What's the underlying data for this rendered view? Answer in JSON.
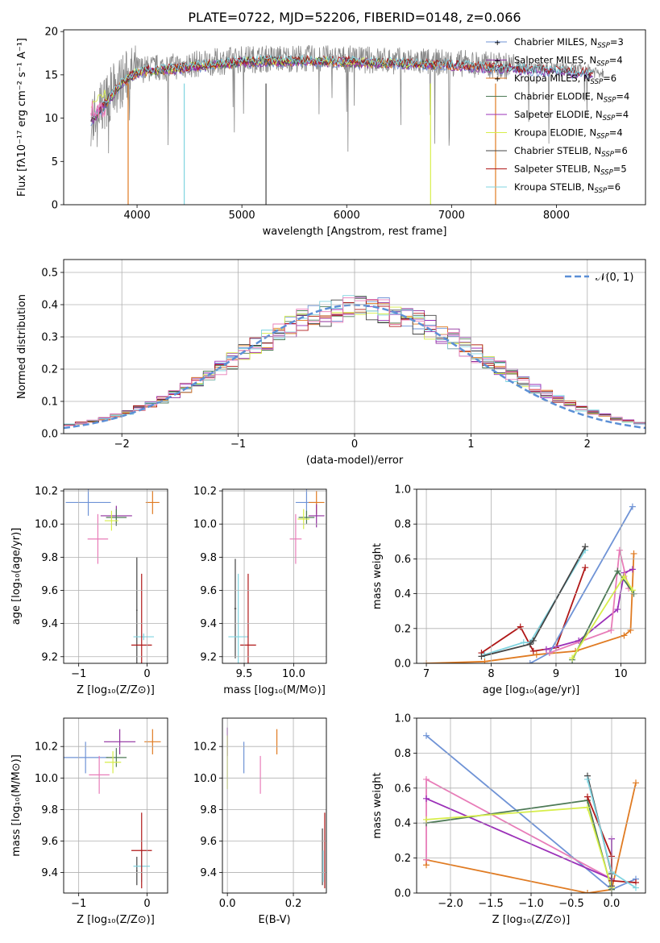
{
  "figure_title": "PLATE=0722, MJD=52206, FIBERID=0148, z=0.066",
  "colors": {
    "Chabrier MILES": "#6f93d6",
    "Salpeter MILES": "#8f2f9e",
    "Kroupa MILES": "#e07b22",
    "Chabrier ELODIE": "#4d7a56",
    "Salpeter ELODIE": "#9b30b8",
    "Kroupa ELODIE": "#d7ee4a",
    "Chabrier STELIB": "#444444",
    "Salpeter STELIB": "#b01818",
    "Kroupa STELIB": "#80d4e0",
    "pink": "#e87cb8",
    "data": "#888888",
    "grid": "#b0b0b0"
  },
  "chart_data": [
    {
      "id": "spectrum",
      "type": "line",
      "xlabel": "wavelength [Angstrom, rest frame]",
      "ylabel": "Flux [fλ10⁻¹⁷ erg cm⁻² s⁻¹ A⁻¹]",
      "xlim": [
        3300,
        8850
      ],
      "ylim": [
        0,
        20.2
      ],
      "xticks": [
        "4000",
        "5000",
        "6000",
        "7000",
        "8000"
      ],
      "yticks": [
        "0",
        "5",
        "10",
        "15",
        "20"
      ],
      "legend_position": "top-right",
      "legend": [
        {
          "base": "Chabrier MILES, N",
          "sub": "SSP",
          "tail": "=3",
          "color": "Chabrier MILES"
        },
        {
          "base": "Salpeter MILES, N",
          "sub": "SSP",
          "tail": "=4",
          "color": "Salpeter MILES"
        },
        {
          "base": "Kroupa MILES, N",
          "sub": "SSP",
          "tail": "=6",
          "color": "Kroupa MILES"
        },
        {
          "base": "Chabrier ELODIE, N",
          "sub": "SSP",
          "tail": "=4",
          "color": "Chabrier ELODIE"
        },
        {
          "base": "Salpeter ELODIE, N",
          "sub": "SSP",
          "tail": "=4",
          "color": "Salpeter ELODIE"
        },
        {
          "base": "Kroupa ELODIE, N",
          "sub": "SSP",
          "tail": "=4",
          "color": "Kroupa ELODIE"
        },
        {
          "base": "Chabrier STELIB, N",
          "sub": "SSP",
          "tail": "=6",
          "color": "Chabrier STELIB"
        },
        {
          "base": "Salpeter STELIB, N",
          "sub": "SSP",
          "tail": "=5",
          "color": "Salpeter STELIB"
        },
        {
          "base": "Kroupa STELIB, N",
          "sub": "SSP",
          "tail": "=6",
          "color": "Kroupa STELIB"
        }
      ],
      "continuum": [
        [
          3550,
          9.8
        ],
        [
          3700,
          12
        ],
        [
          3850,
          14.3
        ],
        [
          4000,
          15.6
        ],
        [
          4300,
          15.9
        ],
        [
          4600,
          16.3
        ],
        [
          5000,
          16.8
        ],
        [
          5500,
          16.9
        ],
        [
          6000,
          16.8
        ],
        [
          6500,
          16.6
        ],
        [
          7000,
          16.4
        ],
        [
          7400,
          16.1
        ],
        [
          8000,
          15.7
        ],
        [
          8500,
          15.3
        ]
      ],
      "dropouts": [
        {
          "x": 3915,
          "series": "Kroupa MILES"
        },
        {
          "x": 4450,
          "series": "Kroupa STELIB"
        },
        {
          "x": 5230,
          "series": "Chabrier STELIB"
        },
        {
          "x": 6800,
          "series": "Kroupa ELODIE"
        },
        {
          "x": 7420,
          "series": "Kroupa MILES"
        }
      ]
    },
    {
      "id": "residuals",
      "type": "line",
      "xlabel": "(data-model)/error",
      "ylabel": "Normed distribution",
      "xlim": [
        -2.5,
        2.5
      ],
      "ylim": [
        0,
        0.54
      ],
      "xticks": [
        "−2",
        "−1",
        "0",
        "1",
        "2"
      ],
      "yticks": [
        "0.0",
        "0.1",
        "0.2",
        "0.3",
        "0.4",
        "0.5"
      ],
      "gaussian_label": "𝒩(0, 1)",
      "gaussian": {
        "mean": 0,
        "sigma": 1
      }
    },
    {
      "id": "age-vs-Z",
      "type": "scatter",
      "xlabel": "Z [log₁₀(Z/Z⊙)]",
      "ylabel": "age  [log₁₀(age/yr)]",
      "xlim": [
        -1.22,
        0.3
      ],
      "ylim": [
        9.16,
        10.21
      ],
      "xticks": [
        "−1",
        "0"
      ],
      "yticks": [
        "9.2",
        "9.4",
        "9.6",
        "9.8",
        "10.0",
        "10.2"
      ],
      "points": [
        {
          "c": "Chabrier MILES",
          "x": -0.86,
          "xe": 0.33,
          "y": 10.13,
          "ye": 0.08
        },
        {
          "c": "Kroupa MILES",
          "x": 0.08,
          "xe": 0.1,
          "y": 10.13,
          "ye": 0.07
        },
        {
          "c": "Salpeter MILES",
          "x": -0.45,
          "xe": 0.23,
          "y": 10.05,
          "ye": 0.06
        },
        {
          "c": "Chabrier ELODIE",
          "x": -0.45,
          "xe": 0.15,
          "y": 10.04,
          "ye": 0.05
        },
        {
          "c": "Kroupa ELODIE",
          "x": -0.52,
          "xe": 0.1,
          "y": 10.02,
          "ye": 0.06
        },
        {
          "c": "pink",
          "x": -0.72,
          "xe": 0.15,
          "y": 9.91,
          "ye": 0.15
        },
        {
          "c": "Chabrier STELIB",
          "x": -0.15,
          "xe": 0.01,
          "y": 9.48,
          "ye": 0.32
        },
        {
          "c": "Kroupa STELIB",
          "x": -0.05,
          "xe": 0.15,
          "y": 9.32,
          "ye": 0.02
        },
        {
          "c": "Salpeter STELIB",
          "x": -0.08,
          "xe": 0.15,
          "y": 9.27,
          "ye": 0.43
        }
      ]
    },
    {
      "id": "age-vs-mass",
      "type": "scatter",
      "xlabel": "mass [log₁₀(M/M⊙)]",
      "ylabel": "",
      "xlim": [
        9.28,
        10.33
      ],
      "ylim": [
        9.16,
        10.21
      ],
      "xticks": [
        "9.5",
        "10.0"
      ],
      "yticks": [
        "9.2",
        "9.4",
        "9.6",
        "9.8",
        "10.0",
        "10.2"
      ],
      "points": [
        {
          "c": "Chabrier MILES",
          "x": 10.13,
          "xe": 0.11,
          "y": 10.13,
          "ye": 0.08
        },
        {
          "c": "Kroupa MILES",
          "x": 10.23,
          "xe": 0.08,
          "y": 10.13,
          "ye": 0.07
        },
        {
          "c": "Salpeter MILES",
          "x": 10.23,
          "xe": 0.08,
          "y": 10.05,
          "ye": 0.07
        },
        {
          "c": "Chabrier ELODIE",
          "x": 10.13,
          "xe": 0.08,
          "y": 10.04,
          "ye": 0.04
        },
        {
          "c": "Kroupa ELODIE",
          "x": 10.1,
          "xe": 0.06,
          "y": 10.03,
          "ye": 0.06
        },
        {
          "c": "pink",
          "x": 10.02,
          "xe": 0.06,
          "y": 9.91,
          "ye": 0.15
        },
        {
          "c": "Chabrier STELIB",
          "x": 9.41,
          "xe": 0.01,
          "y": 9.49,
          "ye": 0.3
        },
        {
          "c": "Kroupa STELIB",
          "x": 9.44,
          "xe": 0.1,
          "y": 9.32,
          "ye": 0.38
        },
        {
          "c": "Salpeter STELIB",
          "x": 9.54,
          "xe": 0.08,
          "y": 9.27,
          "ye": 0.43
        }
      ]
    },
    {
      "id": "weight-vs-age",
      "type": "line",
      "xlabel": "age  [log₁₀(age/yr)]",
      "ylabel": "mass weight",
      "xlim": [
        6.85,
        10.38
      ],
      "ylim": [
        0,
        1
      ],
      "xticks": [
        "7",
        "8",
        "9",
        "10"
      ],
      "yticks": [
        "0.0",
        "0.2",
        "0.4",
        "0.6",
        "0.8",
        "1.0"
      ],
      "series": [
        {
          "c": "Kroupa MILES",
          "x": [
            7,
            7.9,
            8.7,
            9.3,
            10.05,
            10.15,
            10.2
          ],
          "y": [
            0,
            0.01,
            0.05,
            0.07,
            0.16,
            0.19,
            0.63
          ]
        },
        {
          "c": "Salpeter STELIB",
          "x": [
            7.85,
            8.45,
            8.65,
            9.0,
            9.45
          ],
          "y": [
            0.06,
            0.21,
            0.07,
            0.09,
            0.55
          ]
        },
        {
          "c": "Kroupa STELIB",
          "x": [
            7.9,
            8.5,
            8.6,
            9.45
          ],
          "y": [
            0.05,
            0.12,
            0.12,
            0.65
          ]
        },
        {
          "c": "Chabrier STELIB",
          "x": [
            7.85,
            8.6,
            8.65,
            9.45
          ],
          "y": [
            0.04,
            0.11,
            0.13,
            0.67
          ]
        },
        {
          "c": "Salpeter ELODIE",
          "x": [
            8.85,
            9.35,
            9.95,
            10.05,
            10.18
          ],
          "y": [
            0.08,
            0.13,
            0.31,
            0.52,
            0.54
          ]
        },
        {
          "c": "Chabrier MILES",
          "x": [
            8.6,
            8.9,
            10.18
          ],
          "y": [
            0.0,
            0.06,
            0.9
          ]
        },
        {
          "c": "pink",
          "x": [
            8.9,
            9.85,
            9.98,
            10.12
          ],
          "y": [
            0.06,
            0.19,
            0.65,
            0.43
          ]
        },
        {
          "c": "Chabrier ELODIE",
          "x": [
            9.25,
            9.95,
            10.2
          ],
          "y": [
            0.02,
            0.53,
            0.4
          ]
        },
        {
          "c": "Kroupa ELODIE",
          "x": [
            9.25,
            10.05,
            10.18
          ],
          "y": [
            0.03,
            0.5,
            0.42
          ]
        }
      ]
    },
    {
      "id": "mass-vs-Z",
      "type": "scatter",
      "xlabel": "Z [log₁₀(Z/Z⊙)]",
      "ylabel": "mass [log₁₀(M/M⊙)]",
      "xlim": [
        -1.22,
        0.3
      ],
      "ylim": [
        9.27,
        10.38
      ],
      "xticks": [
        "−1",
        "0"
      ],
      "yticks": [
        "9.4",
        "9.6",
        "9.8",
        "10.0",
        "10.2"
      ],
      "points": [
        {
          "c": "Chabrier MILES",
          "x": -0.9,
          "xe": 0.33,
          "y": 10.13,
          "ye": 0.1
        },
        {
          "c": "Kroupa MILES",
          "x": 0.08,
          "xe": 0.12,
          "y": 10.23,
          "ye": 0.08
        },
        {
          "c": "Salpeter MILES",
          "x": -0.4,
          "xe": 0.23,
          "y": 10.23,
          "ye": 0.08
        },
        {
          "c": "Chabrier ELODIE",
          "x": -0.45,
          "xe": 0.15,
          "y": 10.13,
          "ye": 0.06
        },
        {
          "c": "Kroupa ELODIE",
          "x": -0.5,
          "xe": 0.12,
          "y": 10.1,
          "ye": 0.07
        },
        {
          "c": "pink",
          "x": -0.7,
          "xe": 0.15,
          "y": 10.02,
          "ye": 0.12
        },
        {
          "c": "Chabrier STELIB",
          "x": -0.15,
          "xe": 0.01,
          "y": 9.41,
          "ye": 0.09
        },
        {
          "c": "Kroupa STELIB",
          "x": -0.08,
          "xe": 0.12,
          "y": 9.44,
          "ye": 0.1
        },
        {
          "c": "Salpeter STELIB",
          "x": -0.08,
          "xe": 0.15,
          "y": 9.54,
          "ye": 0.24
        }
      ]
    },
    {
      "id": "mass-vs-EBV",
      "type": "scatter",
      "xlabel": "E(B-V)",
      "ylabel": "",
      "xlim": [
        -0.015,
        0.3
      ],
      "ylim": [
        9.27,
        10.38
      ],
      "xticks": [
        "0.0",
        "0.2"
      ],
      "yticks": [
        "9.4",
        "9.6",
        "9.8",
        "10.0",
        "10.2"
      ],
      "points": [
        {
          "c": "Salpeter ELODIE",
          "x": 0,
          "xe": 0,
          "y": 10.23,
          "ye": 0.09
        },
        {
          "c": "Kroupa ELODIE",
          "x": 0,
          "xe": 0,
          "y": 10.1,
          "ye": 0.17
        },
        {
          "c": "Chabrier MILES",
          "x": 0.05,
          "xe": 0,
          "y": 10.13,
          "ye": 0.1
        },
        {
          "c": "pink",
          "x": 0.1,
          "xe": 0,
          "y": 10.02,
          "ye": 0.12
        },
        {
          "c": "Kroupa MILES",
          "x": 0.15,
          "xe": 0,
          "y": 10.23,
          "ye": 0.08
        },
        {
          "c": "Chabrier STELIB",
          "x": 0.288,
          "xe": 0,
          "y": 9.5,
          "ye": 0.18
        },
        {
          "c": "Kroupa STELIB",
          "x": 0.29,
          "xe": 0,
          "y": 9.44,
          "ye": 0.1
        },
        {
          "c": "Salpeter STELIB",
          "x": 0.295,
          "xe": 0,
          "y": 9.54,
          "ye": 0.24
        }
      ]
    },
    {
      "id": "weight-vs-Z",
      "type": "line",
      "xlabel": "Z [log₁₀(Z/Z⊙)]",
      "ylabel": "mass weight",
      "xlim": [
        -2.42,
        0.42
      ],
      "ylim": [
        0,
        1
      ],
      "xticks": [
        "−2.0",
        "−1.5",
        "−1.0",
        "−0.5",
        "0.0"
      ],
      "yticks": [
        "0.0",
        "0.2",
        "0.4",
        "0.6",
        "0.8",
        "1.0"
      ],
      "series": [
        {
          "c": "Kroupa MILES",
          "x": [
            -2.3,
            -2.3,
            -0.3,
            0.0,
            0.3
          ],
          "y": [
            0.16,
            0.19,
            0.0,
            0.02,
            0.63
          ]
        },
        {
          "c": "Chabrier MILES",
          "x": [
            -2.3,
            0.0,
            0.3
          ],
          "y": [
            0.9,
            0.02,
            0.08
          ]
        },
        {
          "c": "pink",
          "x": [
            -2.3,
            -2.3,
            0.0
          ],
          "y": [
            0.19,
            0.65,
            0.08
          ]
        },
        {
          "c": "Salpeter ELODIE",
          "x": [
            -2.3,
            0.0,
            0.0
          ],
          "y": [
            0.54,
            0.08,
            0.31
          ]
        },
        {
          "c": "Chabrier ELODIE",
          "x": [
            -2.3,
            -0.3,
            0.0
          ],
          "y": [
            0.4,
            0.53,
            0.02
          ]
        },
        {
          "c": "Kroupa ELODIE",
          "x": [
            -2.3,
            -0.3,
            0.0
          ],
          "y": [
            0.42,
            0.49,
            0.03
          ]
        },
        {
          "c": "Salpeter STELIB",
          "x": [
            -0.3,
            0.0,
            0.0,
            0.3
          ],
          "y": [
            0.55,
            0.21,
            0.07,
            0.06
          ]
        },
        {
          "c": "Chabrier STELIB",
          "x": [
            -0.3,
            0.0,
            0.0
          ],
          "y": [
            0.67,
            0.11,
            0.04
          ]
        },
        {
          "c": "Kroupa STELIB",
          "x": [
            -0.3,
            0.0,
            0.3
          ],
          "y": [
            0.65,
            0.12,
            0.03
          ]
        }
      ]
    }
  ]
}
